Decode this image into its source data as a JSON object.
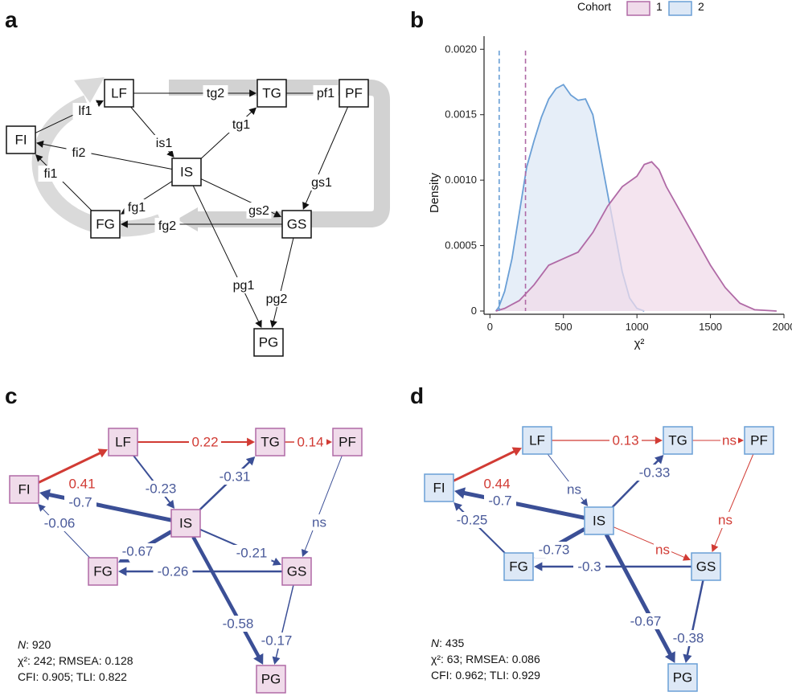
{
  "panels": {
    "a": "a",
    "b": "b",
    "c": "c",
    "d": "d"
  },
  "nodes": [
    "FI",
    "LF",
    "TG",
    "PF",
    "IS",
    "FG",
    "GS",
    "PG"
  ],
  "panel_a": {
    "edges": [
      {
        "id": "lf1",
        "from": "FI",
        "to": "LF",
        "label": "lf1"
      },
      {
        "id": "tg2",
        "from": "LF",
        "to": "TG",
        "label": "tg2"
      },
      {
        "id": "pf1",
        "from": "TG",
        "to": "PF",
        "label": "pf1"
      },
      {
        "id": "is1",
        "from": "LF",
        "to": "IS",
        "label": "is1"
      },
      {
        "id": "tg1",
        "from": "IS",
        "to": "TG",
        "label": "tg1"
      },
      {
        "id": "fi2",
        "from": "IS",
        "to": "FI",
        "label": "fi2"
      },
      {
        "id": "fi1",
        "from": "FG",
        "to": "FI",
        "label": "fi1"
      },
      {
        "id": "fg1",
        "from": "IS",
        "to": "FG",
        "label": "fg1"
      },
      {
        "id": "gs2",
        "from": "IS",
        "to": "GS",
        "label": "gs2"
      },
      {
        "id": "gs1",
        "from": "PF",
        "to": "GS",
        "label": "gs1"
      },
      {
        "id": "fg2",
        "from": "GS",
        "to": "FG",
        "label": "fg2"
      },
      {
        "id": "pg1",
        "from": "IS",
        "to": "PG",
        "label": "pg1"
      },
      {
        "id": "pg2",
        "from": "GS",
        "to": "PG",
        "label": "pg2"
      }
    ]
  },
  "chart_data": {
    "type": "area",
    "xlabel": "χ²",
    "ylabel": "Density",
    "xlim": [
      -40,
      2000
    ],
    "ylim": [
      0,
      0.0021
    ],
    "xticks": [
      0,
      500,
      1000,
      1500,
      2000
    ],
    "yticks": [
      0,
      0.0005,
      0.001,
      0.0015,
      0.002
    ],
    "ytick_labels": [
      "0",
      "0.0005",
      "0.0010",
      "0.0015",
      "0.0020"
    ],
    "xtick_labels": [
      "0",
      "500",
      "1000",
      "1500",
      "2000"
    ],
    "grid": false,
    "legend": {
      "title": "Cohort",
      "position": "top-right",
      "entries": [
        "1",
        "2"
      ]
    },
    "colors": {
      "1": "#b06aa6",
      "2": "#6a9fd6"
    },
    "fills": {
      "1": "#f0dbea",
      "2": "#dde8f6"
    },
    "vlines": [
      {
        "series": "2",
        "x": 63
      },
      {
        "series": "1",
        "x": 242
      }
    ],
    "series": [
      {
        "name": "2",
        "points": [
          [
            40,
            0
          ],
          [
            60,
            3e-05
          ],
          [
            100,
            0.00015
          ],
          [
            150,
            0.0004
          ],
          [
            200,
            0.00075
          ],
          [
            250,
            0.0011
          ],
          [
            300,
            0.0013
          ],
          [
            350,
            0.00148
          ],
          [
            400,
            0.00162
          ],
          [
            450,
            0.0017
          ],
          [
            500,
            0.00173
          ],
          [
            550,
            0.00165
          ],
          [
            600,
            0.00161
          ],
          [
            650,
            0.00162
          ],
          [
            700,
            0.0015
          ],
          [
            750,
            0.0012
          ],
          [
            800,
            0.0009
          ],
          [
            850,
            0.0006
          ],
          [
            900,
            0.0003
          ],
          [
            950,
            0.0001
          ],
          [
            1000,
            2e-05
          ],
          [
            1050,
            0
          ]
        ]
      },
      {
        "name": "1",
        "points": [
          [
            40,
            0
          ],
          [
            100,
            2e-05
          ],
          [
            200,
            8e-05
          ],
          [
            300,
            0.0002
          ],
          [
            400,
            0.00035
          ],
          [
            500,
            0.0004
          ],
          [
            600,
            0.00045
          ],
          [
            700,
            0.0006
          ],
          [
            800,
            0.0008
          ],
          [
            900,
            0.00095
          ],
          [
            1000,
            0.00103
          ],
          [
            1050,
            0.00112
          ],
          [
            1100,
            0.00114
          ],
          [
            1150,
            0.00108
          ],
          [
            1200,
            0.00095
          ],
          [
            1300,
            0.00075
          ],
          [
            1400,
            0.00055
          ],
          [
            1500,
            0.00035
          ],
          [
            1600,
            0.00018
          ],
          [
            1700,
            6e-05
          ],
          [
            1800,
            1e-05
          ],
          [
            1950,
            0
          ]
        ]
      }
    ]
  },
  "panel_c": {
    "fit": {
      "n_label": "N",
      "n_value": ": 920",
      "chi_line": "²: 242; RMSEA: 0.128",
      "cfi_line": "CFI: 0.905; TLI: 0.822"
    },
    "edges": [
      {
        "from": "FI",
        "to": "LF",
        "label": "0.41",
        "sign": "pos",
        "w": 3
      },
      {
        "from": "LF",
        "to": "TG",
        "label": "0.22",
        "sign": "pos",
        "w": 2
      },
      {
        "from": "TG",
        "to": "PF",
        "label": "0.14",
        "sign": "pos",
        "w": 1.5
      },
      {
        "from": "LF",
        "to": "IS",
        "label": "-0.23",
        "sign": "neg",
        "w": 2
      },
      {
        "from": "IS",
        "to": "TG",
        "label": "-0.31",
        "sign": "neg",
        "w": 2.5
      },
      {
        "from": "IS",
        "to": "FI",
        "label": "-0.7",
        "sign": "neg",
        "w": 5
      },
      {
        "from": "FG",
        "to": "FI",
        "label": "-0.06",
        "sign": "neg",
        "w": 1
      },
      {
        "from": "IS",
        "to": "FG",
        "label": "-0.67",
        "sign": "neg",
        "w": 5
      },
      {
        "from": "IS",
        "to": "GS",
        "label": "-0.21",
        "sign": "neg",
        "w": 2
      },
      {
        "from": "PF",
        "to": "GS",
        "label": "ns",
        "sign": "neg",
        "w": 1
      },
      {
        "from": "GS",
        "to": "FG",
        "label": "-0.26",
        "sign": "neg",
        "w": 2.5
      },
      {
        "from": "IS",
        "to": "PG",
        "label": "-0.58",
        "sign": "neg",
        "w": 4.5
      },
      {
        "from": "GS",
        "to": "PG",
        "label": "-0.17",
        "sign": "neg",
        "w": 1.5
      }
    ]
  },
  "panel_d": {
    "fit": {
      "n_label": "N",
      "n_value": ": 435",
      "chi_line": "²: 63; RMSEA: 0.086",
      "cfi_line": "CFI: 0.962; TLI: 0.929"
    },
    "edges": [
      {
        "from": "FI",
        "to": "LF",
        "label": "0.44",
        "sign": "pos",
        "w": 3
      },
      {
        "from": "LF",
        "to": "TG",
        "label": "0.13",
        "sign": "pos",
        "w": 1.2
      },
      {
        "from": "TG",
        "to": "PF",
        "label": "ns",
        "sign": "pos",
        "w": 1
      },
      {
        "from": "LF",
        "to": "IS",
        "label": "ns",
        "sign": "neg",
        "w": 1
      },
      {
        "from": "IS",
        "to": "TG",
        "label": "-0.33",
        "sign": "neg",
        "w": 2.5
      },
      {
        "from": "IS",
        "to": "FI",
        "label": "-0.7",
        "sign": "neg",
        "w": 5
      },
      {
        "from": "FG",
        "to": "FI",
        "label": "-0.25",
        "sign": "neg",
        "w": 2
      },
      {
        "from": "IS",
        "to": "FG",
        "label": "-0.73",
        "sign": "neg",
        "w": 5
      },
      {
        "from": "IS",
        "to": "GS",
        "label": "ns",
        "sign": "pos",
        "w": 1
      },
      {
        "from": "PF",
        "to": "GS",
        "label": "ns",
        "sign": "pos",
        "w": 1
      },
      {
        "from": "GS",
        "to": "FG",
        "label": "-0.3",
        "sign": "neg",
        "w": 2.5
      },
      {
        "from": "IS",
        "to": "PG",
        "label": "-0.67",
        "sign": "neg",
        "w": 5
      },
      {
        "from": "GS",
        "to": "PG",
        "label": "-0.38",
        "sign": "neg",
        "w": 2.5
      }
    ]
  },
  "colors": {
    "pos": "#d13b34",
    "neg": "#3b4f96",
    "neg_text": "#4a5a9a",
    "pos_text": "#d13b34",
    "c_node_fill": "#f0dbea",
    "c_node_stroke": "#b06aa6",
    "d_node_fill": "#dde8f6",
    "d_node_stroke": "#6a9fd6",
    "cycle_gray": "#d6d6d6"
  }
}
